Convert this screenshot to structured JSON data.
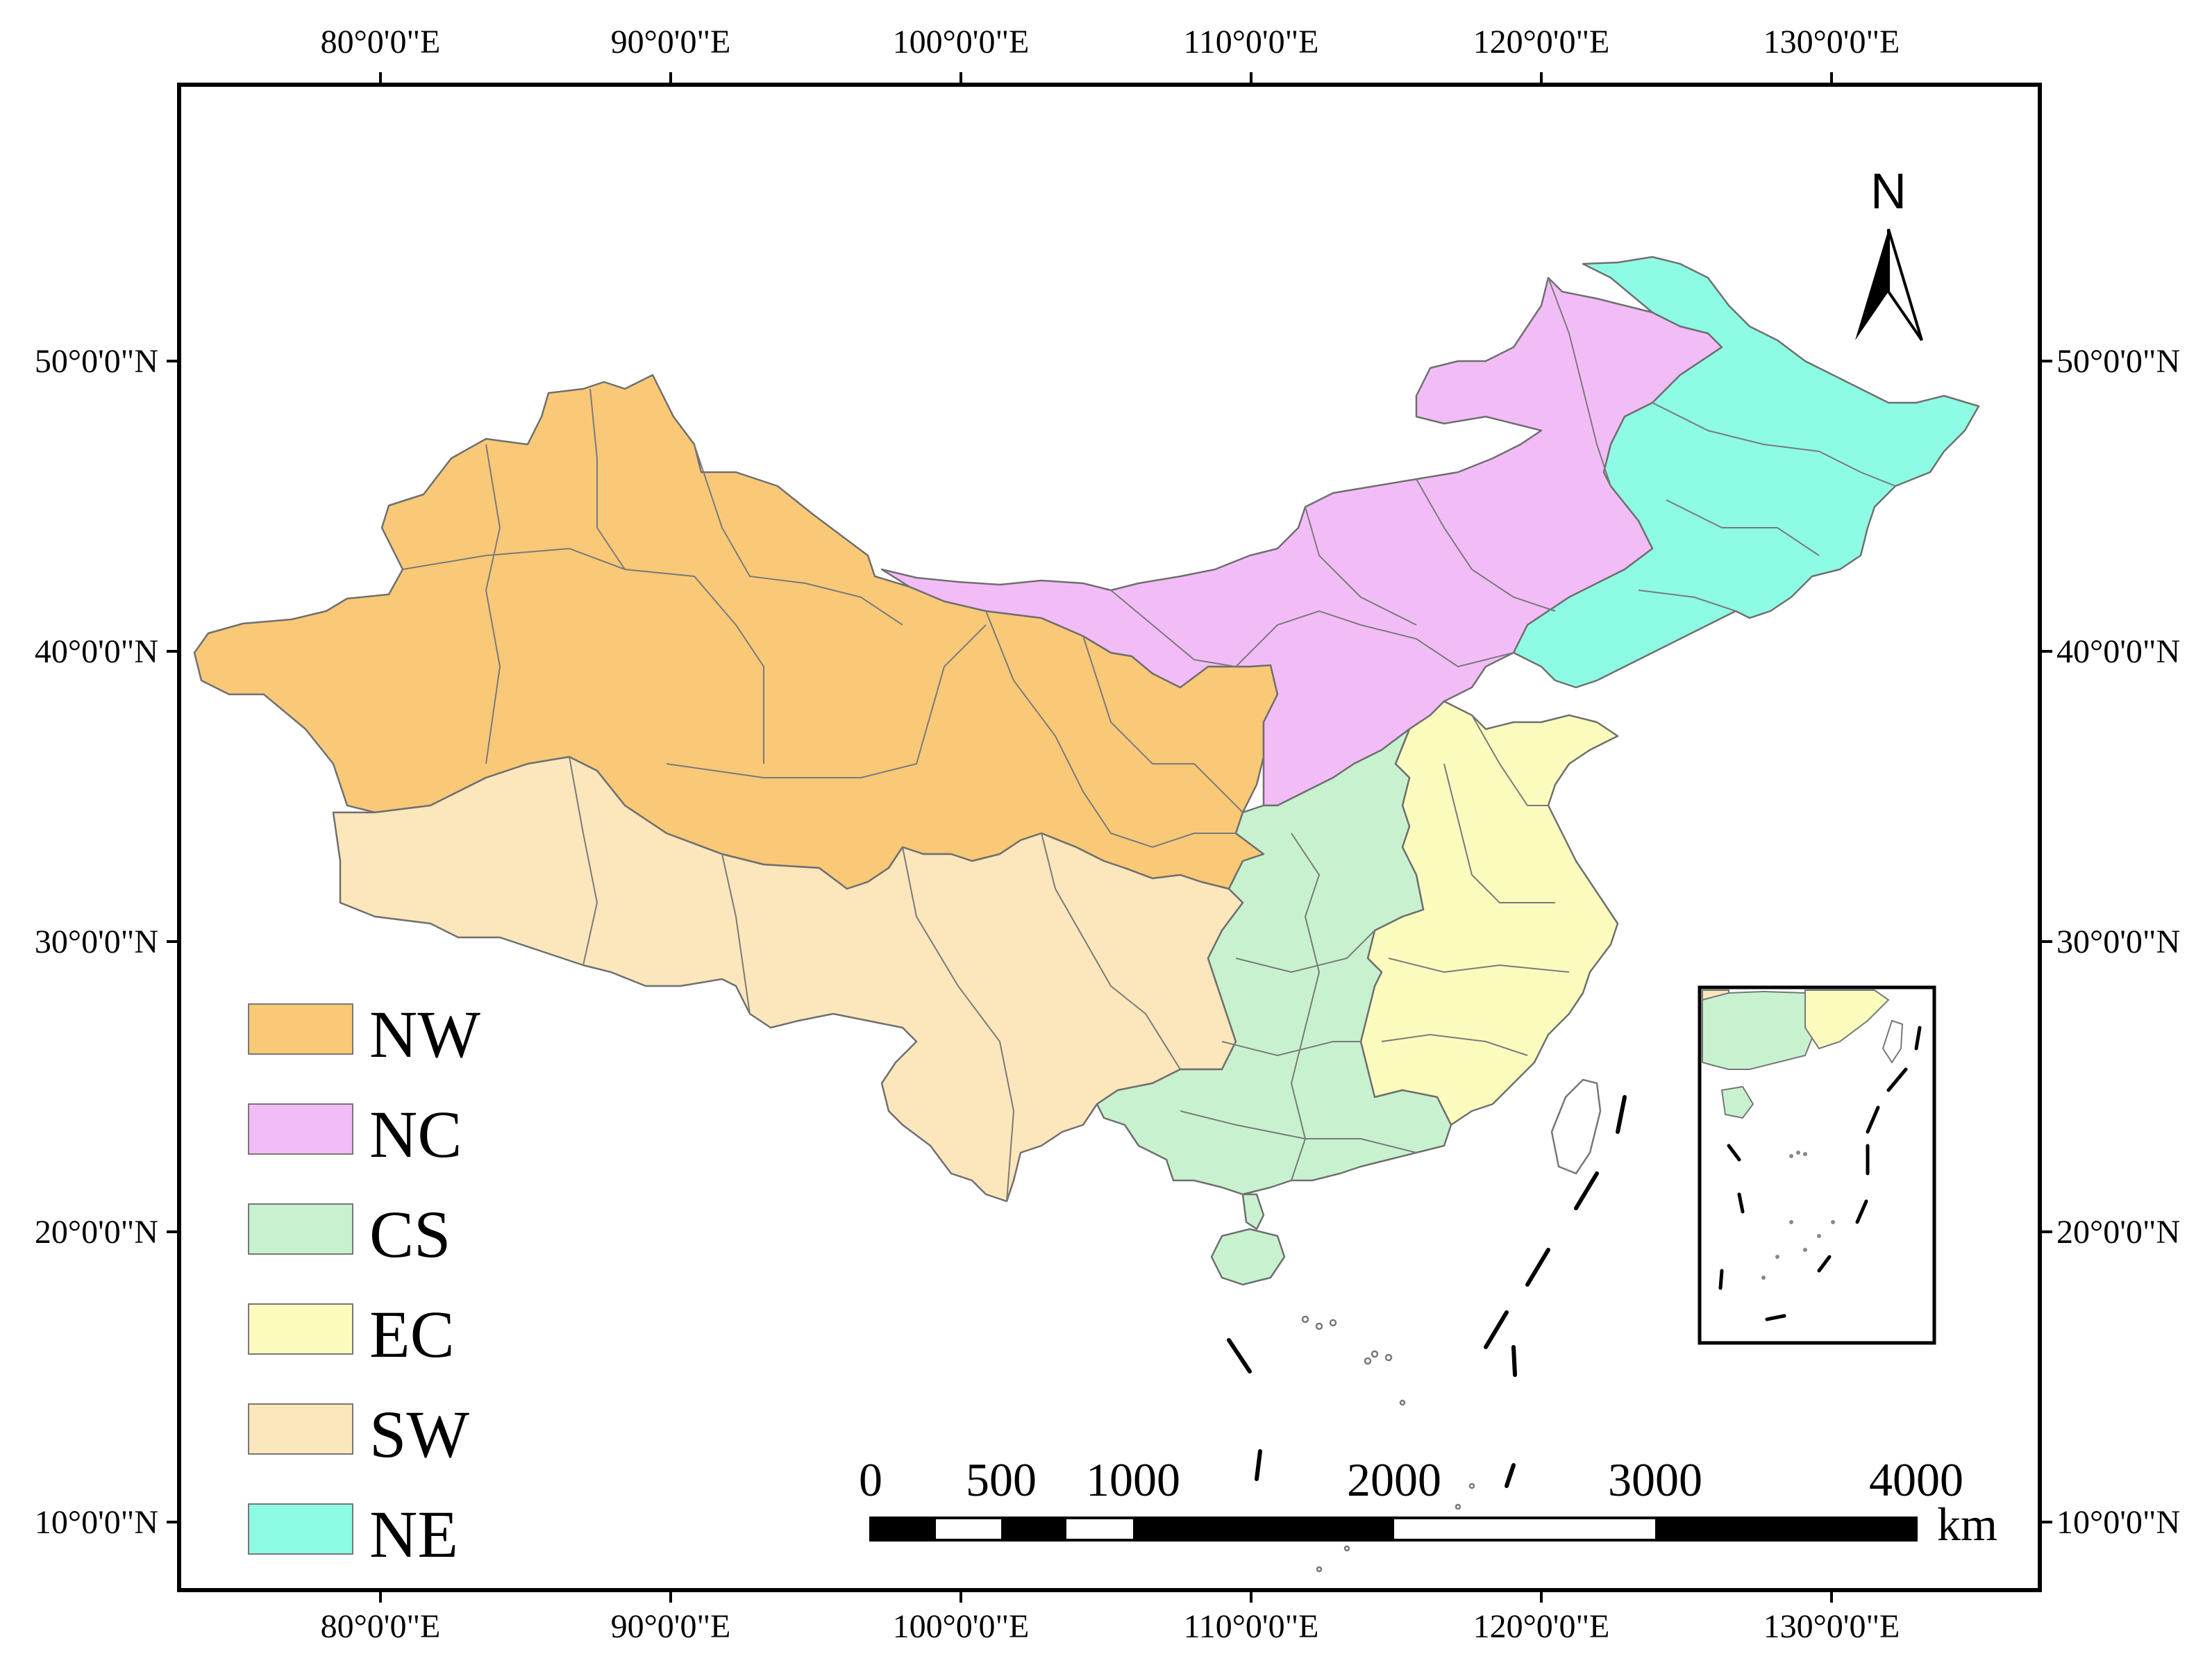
{
  "map": {
    "top_lon_labels": [
      "80°0'0\"E",
      "90°0'0\"E",
      "100°0'0\"E",
      "110°0'0\"E",
      "120°0'0\"E",
      "130°0'0\"E"
    ],
    "bottom_lon_labels": [
      "80°0'0\"E",
      "90°0'0\"E",
      "100°0'0\"E",
      "110°0'0\"E",
      "120°0'0\"E",
      "130°0'0\"E"
    ],
    "left_lat_labels": [
      "50°0'0\"N",
      "40°0'0\"N",
      "30°0'0\"N",
      "20°0'0\"N",
      "10°0'0\"N"
    ],
    "right_lat_labels": [
      "50°0'0\"N",
      "40°0'0\"N",
      "30°0'0\"N",
      "20°0'0\"N",
      "10°0'0\"N"
    ],
    "north_arrow_label": "N",
    "legend": [
      {
        "label": "NW",
        "color": "#F9C978"
      },
      {
        "label": "NC",
        "color": "#F2BDF7"
      },
      {
        "label": "CS",
        "color": "#C8F2CF"
      },
      {
        "label": "EC",
        "color": "#FBFBBE"
      },
      {
        "label": "SW",
        "color": "#FCE6BC"
      },
      {
        "label": "NE",
        "color": "#8EFCE4"
      }
    ],
    "scale_bar": {
      "ticks": [
        "0",
        "500",
        "1000",
        "2000",
        "3000",
        "4000"
      ],
      "unit": "km"
    },
    "colors": {
      "border": "#000000",
      "boundary": "#6f6f6f"
    }
  }
}
